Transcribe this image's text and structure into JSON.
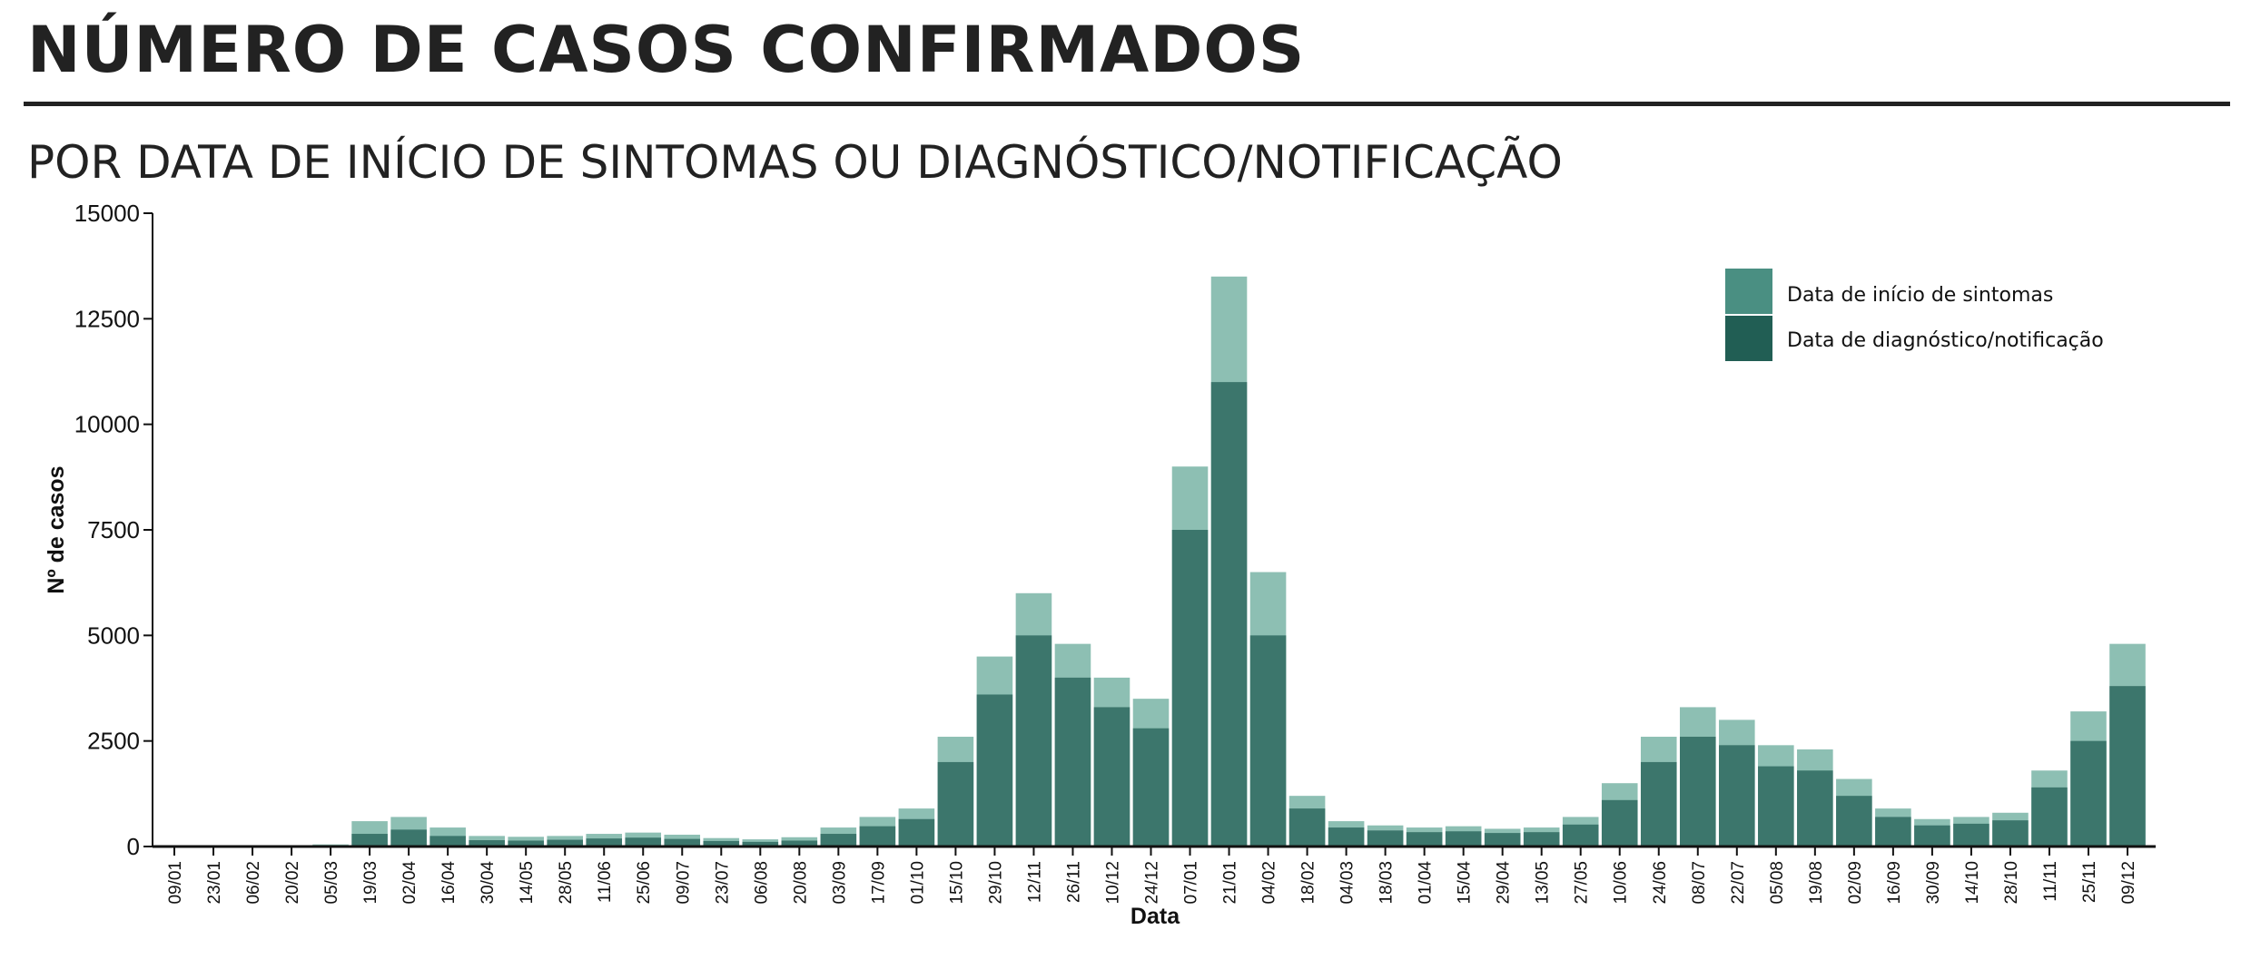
{
  "header": {
    "title": "NÚMERO DE CASOS CONFIRMADOS",
    "subtitle": "POR DATA DE INÍCIO DE SINTOMAS OU DIAGNÓSTICO/NOTIFICAÇÃO"
  },
  "colors": {
    "sintomas": "#4a8f82",
    "sintomas_light": "#8dbfb3",
    "diagnostico": "#215e54",
    "axis": "#111111",
    "text": "#222222"
  },
  "chart_data": {
    "type": "bar",
    "xlabel": "Data",
    "ylabel": "Nº de casos",
    "ylim": [
      0,
      15000
    ],
    "yticks": [
      "0",
      "2500",
      "5000",
      "7500",
      "10000",
      "12500",
      "15000"
    ],
    "legend_position": "top-right",
    "grid": false,
    "categories": [
      "09/01",
      "23/01",
      "06/02",
      "20/02",
      "05/03",
      "19/03",
      "02/04",
      "16/04",
      "30/04",
      "14/05",
      "28/05",
      "11/06",
      "25/06",
      "09/07",
      "23/07",
      "06/08",
      "20/08",
      "03/09",
      "17/09",
      "01/10",
      "15/10",
      "29/10",
      "12/11",
      "26/11",
      "10/12",
      "24/12",
      "07/01",
      "21/01",
      "04/02",
      "18/02",
      "04/03",
      "18/03",
      "01/04",
      "15/04",
      "29/04",
      "13/05",
      "27/05",
      "10/06",
      "24/06",
      "08/07",
      "22/07",
      "05/08",
      "19/08",
      "02/09",
      "16/09",
      "30/09",
      "14/10",
      "28/10",
      "11/11",
      "25/11",
      "09/12"
    ],
    "series": [
      {
        "name": "Data de início de sintomas",
        "values": [
          0,
          0,
          0,
          0,
          50,
          600,
          700,
          450,
          250,
          230,
          250,
          300,
          330,
          280,
          200,
          170,
          220,
          450,
          700,
          900,
          2600,
          4500,
          6000,
          4800,
          4000,
          3500,
          9000,
          13500,
          6500,
          1200,
          600,
          500,
          450,
          480,
          420,
          450,
          700,
          1500,
          2600,
          3300,
          3000,
          2400,
          2300,
          1600,
          900,
          650,
          700,
          800,
          1800,
          3200,
          4800
        ]
      },
      {
        "name": "Data de diagnóstico/notificação",
        "values": [
          0,
          0,
          0,
          0,
          20,
          300,
          400,
          250,
          150,
          140,
          160,
          190,
          210,
          180,
          130,
          110,
          140,
          300,
          480,
          650,
          2000,
          3600,
          5000,
          4000,
          3300,
          2800,
          7500,
          11000,
          5000,
          900,
          450,
          380,
          340,
          360,
          320,
          340,
          520,
          1100,
          2000,
          2600,
          2400,
          1900,
          1800,
          1200,
          700,
          500,
          540,
          620,
          1400,
          2500,
          3800
        ]
      }
    ]
  }
}
